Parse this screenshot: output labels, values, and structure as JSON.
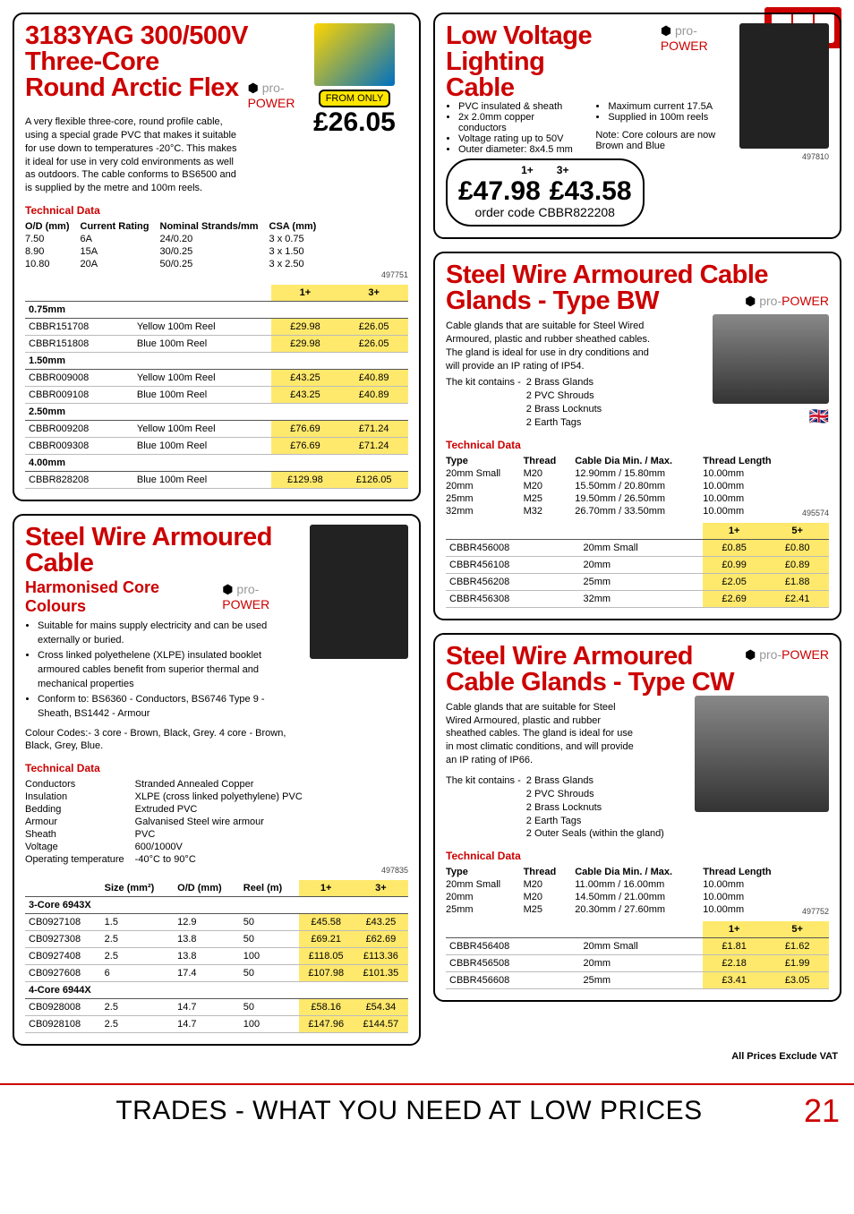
{
  "footer": {
    "text": "TRADES - WHAT YOU NEED AT LOW PRICES",
    "page_number": "21",
    "vat_note": "All Prices Exclude VAT"
  },
  "brand_logo": "pro-POWER",
  "box1": {
    "title_l1": "3183YAG 300/500V Three-Core",
    "title_l2": "Round Arctic Flex",
    "desc": "A very flexible three-core, round profile cable, using a special grade PVC that makes it suitable for use down to temperatures -20°C. This makes it ideal for use in very cold environments as well as outdoors. The cable conforms to BS6500 and is supplied by the metre and 100m reels.",
    "from_only": "FROM ONLY",
    "hero_price": "£26.05",
    "td_heading": "Technical Data",
    "spec_headers": [
      "O/D (mm)",
      "Current Rating",
      "Nominal Strands/mm",
      "CSA (mm)"
    ],
    "spec_rows": [
      [
        "7.50",
        "6A",
        "24/0.20",
        "3 x 0.75"
      ],
      [
        "8.90",
        "15A",
        "30/0.25",
        "3 x 1.50"
      ],
      [
        "10.80",
        "20A",
        "50/0.25",
        "3 x 2.50"
      ]
    ],
    "ref": "497751",
    "price_headers": [
      "1+",
      "3+"
    ],
    "groups": [
      {
        "label": "0.75mm",
        "rows": [
          {
            "code": "CBBR151708",
            "desc": "Yellow 100m Reel",
            "p1": "£29.98",
            "p3": "£26.05"
          },
          {
            "code": "CBBR151808",
            "desc": "Blue 100m Reel",
            "p1": "£29.98",
            "p3": "£26.05"
          }
        ]
      },
      {
        "label": "1.50mm",
        "rows": [
          {
            "code": "CBBR009008",
            "desc": "Yellow 100m Reel",
            "p1": "£43.25",
            "p3": "£40.89"
          },
          {
            "code": "CBBR009108",
            "desc": "Blue 100m Reel",
            "p1": "£43.25",
            "p3": "£40.89"
          }
        ]
      },
      {
        "label": "2.50mm",
        "rows": [
          {
            "code": "CBBR009208",
            "desc": "Yellow 100m Reel",
            "p1": "£76.69",
            "p3": "£71.24"
          },
          {
            "code": "CBBR009308",
            "desc": "Blue 100m Reel",
            "p1": "£76.69",
            "p3": "£71.24"
          }
        ]
      },
      {
        "label": "4.00mm",
        "rows": [
          {
            "code": "CBBR828208",
            "desc": "Blue 100m Reel",
            "p1": "£129.98",
            "p3": "£126.05"
          }
        ]
      }
    ]
  },
  "box2": {
    "title": "Steel Wire Armoured Cable",
    "subtitle": "Harmonised Core Colours",
    "bullets": [
      "Suitable for mains supply electricity and can be used externally or buried.",
      "Cross linked polyethelene (XLPE) insulated booklet armoured cables benefit from superior thermal and mechanical properties",
      "Conform to: BS6360 - Conductors, BS6746 Type 9 - Sheath, BS1442 - Armour"
    ],
    "colour_codes": "Colour Codes:- 3 core - Brown, Black, Grey. 4 core - Brown, Black, Grey, Blue.",
    "td_heading": "Technical Data",
    "specs": [
      [
        "Conductors",
        "Stranded Annealed Copper"
      ],
      [
        "Insulation",
        "XLPE (cross linked polyethylene) PVC"
      ],
      [
        "Bedding",
        "Extruded PVC"
      ],
      [
        "Armour",
        "Galvanised Steel wire armour"
      ],
      [
        "Sheath",
        "PVC"
      ],
      [
        "Voltage",
        "600/1000V"
      ],
      [
        "Operating temperature",
        "-40°C to 90°C"
      ]
    ],
    "ref": "497835",
    "table_headers": [
      "",
      "Size (mm²)",
      "O/D (mm)",
      "Reel (m)",
      "1+",
      "3+"
    ],
    "groups": [
      {
        "label": "3-Core 6943X",
        "rows": [
          {
            "code": "CB0927108",
            "size": "1.5",
            "od": "12.9",
            "reel": "50",
            "p1": "£45.58",
            "p3": "£43.25"
          },
          {
            "code": "CB0927308",
            "size": "2.5",
            "od": "13.8",
            "reel": "50",
            "p1": "£69.21",
            "p3": "£62.69"
          },
          {
            "code": "CB0927408",
            "size": "2.5",
            "od": "13.8",
            "reel": "100",
            "p1": "£118.05",
            "p3": "£113.36"
          },
          {
            "code": "CB0927608",
            "size": "6",
            "od": "17.4",
            "reel": "50",
            "p1": "£107.98",
            "p3": "£101.35"
          }
        ]
      },
      {
        "label": "4-Core 6944X",
        "rows": [
          {
            "code": "CB0928008",
            "size": "2.5",
            "od": "14.7",
            "reel": "50",
            "p1": "£58.16",
            "p3": "£54.34"
          },
          {
            "code": "CB0928108",
            "size": "2.5",
            "od": "14.7",
            "reel": "100",
            "p1": "£147.96",
            "p3": "£144.57"
          }
        ]
      }
    ]
  },
  "box3": {
    "title_l1": "Low Voltage Lighting",
    "title_l2": "Cable",
    "bullets_left": [
      "PVC insulated & sheath",
      "2x 2.0mm copper conductors",
      "Voltage rating up to 50V",
      "Outer diameter: 8x4.5 mm"
    ],
    "bullets_right": [
      "Maximum current 17.5A",
      "Supplied in 100m reels"
    ],
    "note": "Note: Core colours are now Brown and Blue",
    "qty1": "1+",
    "qty3": "3+",
    "price1": "£47.98",
    "price3": "£43.58",
    "order_label": "order code",
    "order_code": "CBBR822208",
    "ref": "497810"
  },
  "box4": {
    "title_l1": "Steel Wire Armoured Cable",
    "title_l2": "Glands - Type BW",
    "desc": "Cable glands that are suitable for Steel Wired Armoured, plastic and rubber sheathed cables. The gland is ideal for use in dry conditions and will provide an IP rating of IP54.",
    "kit_label": "The kit contains -",
    "kit": [
      "2 Brass Glands",
      "2 PVC Shrouds",
      "2 Brass Locknuts",
      "2 Earth Tags"
    ],
    "td_heading": "Technical Data",
    "spec_headers": [
      "Type",
      "Thread",
      "Cable Dia Min. / Max.",
      "Thread Length"
    ],
    "spec_rows": [
      [
        "20mm Small",
        "M20",
        "12.90mm / 15.80mm",
        "10.00mm"
      ],
      [
        "20mm",
        "M20",
        "15.50mm / 20.80mm",
        "10.00mm"
      ],
      [
        "25mm",
        "M25",
        "19.50mm / 26.50mm",
        "10.00mm"
      ],
      [
        "32mm",
        "M32",
        "26.70mm / 33.50mm",
        "10.00mm"
      ]
    ],
    "ref": "495574",
    "price_headers": [
      "1+",
      "5+"
    ],
    "rows": [
      {
        "code": "CBBR456008",
        "desc": "20mm Small",
        "p1": "£0.85",
        "p2": "£0.80"
      },
      {
        "code": "CBBR456108",
        "desc": "20mm",
        "p1": "£0.99",
        "p2": "£0.89"
      },
      {
        "code": "CBBR456208",
        "desc": "25mm",
        "p1": "£2.05",
        "p2": "£1.88"
      },
      {
        "code": "CBBR456308",
        "desc": "32mm",
        "p1": "£2.69",
        "p2": "£2.41"
      }
    ]
  },
  "box5": {
    "title_l1": "Steel Wire Armoured",
    "title_l2": "Cable Glands - Type CW",
    "desc": "Cable glands that are suitable for Steel Wired Armoured, plastic and rubber sheathed cables. The gland is ideal for use in most climatic conditions, and will provide an IP rating of IP66.",
    "kit_label": "The kit contains -",
    "kit": [
      "2 Brass Glands",
      "2 PVC Shrouds",
      "2 Brass Locknuts",
      "2 Earth Tags",
      "2 Outer Seals (within the gland)"
    ],
    "td_heading": "Technical Data",
    "spec_headers": [
      "Type",
      "Thread",
      "Cable Dia Min. / Max.",
      "Thread Length"
    ],
    "spec_rows": [
      [
        "20mm Small",
        "M20",
        "11.00mm / 16.00mm",
        "10.00mm"
      ],
      [
        "20mm",
        "M20",
        "14.50mm / 21.00mm",
        "10.00mm"
      ],
      [
        "25mm",
        "M25",
        "20.30mm / 27.60mm",
        "10.00mm"
      ]
    ],
    "ref": "497752",
    "price_headers": [
      "1+",
      "5+"
    ],
    "rows": [
      {
        "code": "CBBR456408",
        "desc": "20mm Small",
        "p1": "£1.81",
        "p2": "£1.62"
      },
      {
        "code": "CBBR456508",
        "desc": "20mm",
        "p1": "£2.18",
        "p2": "£1.99"
      },
      {
        "code": "CBBR456608",
        "desc": "25mm",
        "p1": "£3.41",
        "p2": "£3.05"
      }
    ]
  }
}
